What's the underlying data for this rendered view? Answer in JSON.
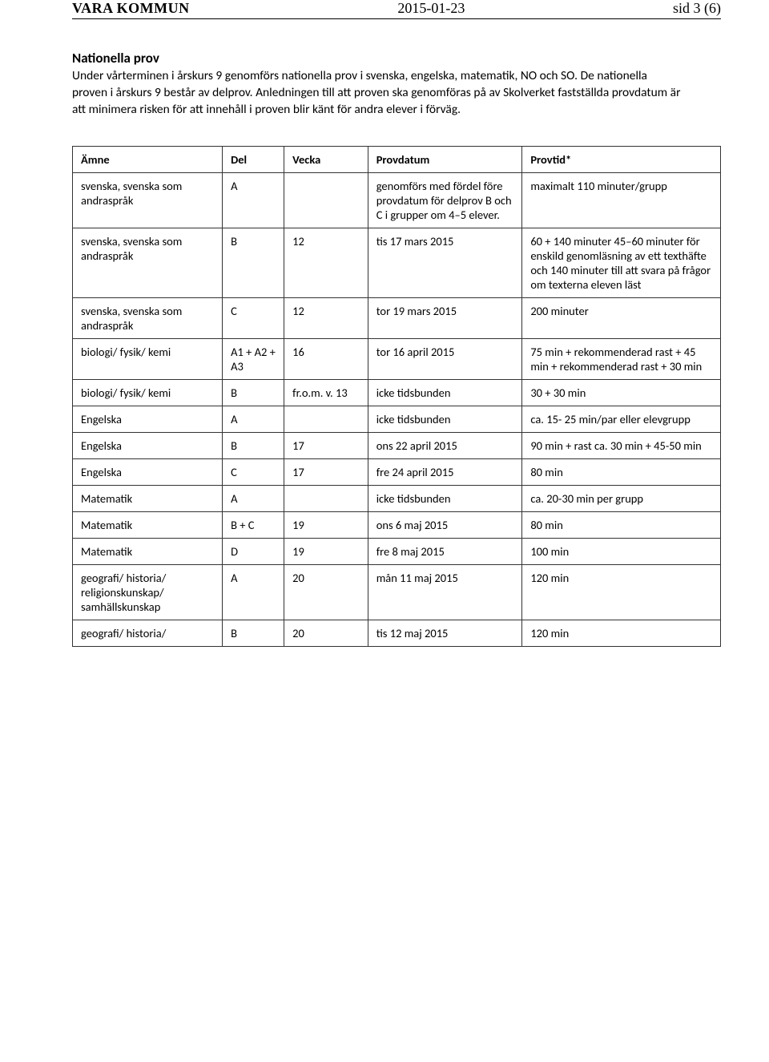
{
  "header": {
    "org": "VARA KOMMUN",
    "date": "2015-01-23",
    "page": "sid 3 (6)"
  },
  "intro": {
    "heading": "Nationella prov",
    "text": "Under vårterminen i årskurs 9 genomförs nationella prov i svenska, engelska, matematik, NO och SO. De nationella proven i årskurs 9 består av delprov. Anledningen till att proven ska genomföras på av Skolverket fastställda provdatum är att minimera risken för att innehåll i proven blir känt för andra elever i förväg."
  },
  "table": {
    "headers": [
      "Ämne",
      "Del",
      "Vecka",
      "Provdatum",
      "Provtid*"
    ],
    "rows": [
      [
        "svenska, svenska som andraspråk",
        "A",
        "",
        "genomförs med fördel före provdatum för delprov B och C i grupper om 4–5 elever.",
        "maximalt 110 minuter/grupp"
      ],
      [
        "svenska, svenska som andraspråk",
        "B",
        "12",
        "tis 17 mars 2015",
        "60 + 140 minuter 45–60 minuter för enskild genomläsning av ett texthäfte och 140 minuter till att svara på frågor om texterna eleven läst"
      ],
      [
        "svenska, svenska som andraspråk",
        "C",
        "12",
        "tor 19 mars 2015",
        "200 minuter"
      ],
      [
        "biologi/ fysik/ kemi",
        "A1 + A2 + A3",
        "16",
        "tor 16 april 2015",
        "75 min + rekommenderad rast + 45 min + rekommenderad rast + 30 min"
      ],
      [
        "biologi/ fysik/ kemi",
        "B",
        "fr.o.m. v. 13",
        "icke tidsbunden",
        "30 + 30 min"
      ],
      [
        "Engelska",
        "A",
        "",
        "icke tidsbunden",
        "ca. 15- 25 min/par eller elevgrupp"
      ],
      [
        "Engelska",
        "B",
        "17",
        "ons 22 april 2015",
        "90 min + rast ca. 30 min + 45-50 min"
      ],
      [
        "Engelska",
        "C",
        "17",
        "fre 24 april 2015",
        "80 min"
      ],
      [
        "Matematik",
        "A",
        "",
        "icke tidsbunden",
        "ca. 20-30 min per grupp"
      ],
      [
        "Matematik",
        "B + C",
        "19",
        "ons 6 maj 2015",
        "80 min"
      ],
      [
        "Matematik",
        "D",
        "19",
        "fre 8 maj 2015",
        "100 min"
      ],
      [
        "geografi/ historia/ religionskunskap/ samhällskunskap",
        "A",
        "20",
        "mån 11 maj 2015",
        "120 min"
      ],
      [
        "geografi/ historia/",
        "B",
        "20",
        "tis 12 maj 2015",
        "120 min"
      ]
    ]
  }
}
